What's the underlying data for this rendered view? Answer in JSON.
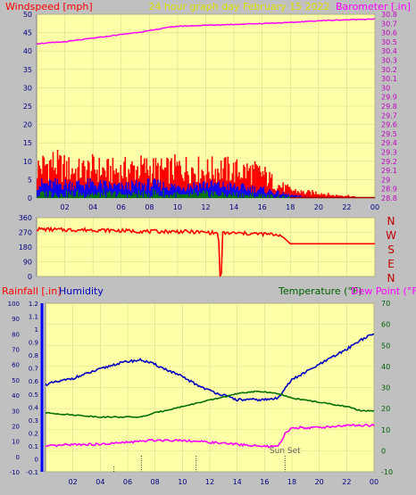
{
  "header": {
    "left_label": "Windspeed [mph]",
    "center_label": "24 hour graph day   February 15 2022",
    "right_label": "Barometer [.in]"
  },
  "footer": {
    "rain_label": "Rainfall [.in]",
    "humidity_label": "Humidity",
    "temp_label": "Temperature (°F)",
    "dew_label": "Dew Point (°F)",
    "sunset_label": "Sun Set"
  },
  "colors": {
    "plot_bg": "#ffffa8",
    "frame_bg": "#c0c0c0",
    "wind_gust": "#ff0000",
    "wind_avg": "#0000ff",
    "wind_low": "#008000",
    "barometer": "#ff00ff",
    "direction": "#ff0000",
    "humidity": "#0000c0",
    "temperature": "#007000",
    "dewpoint": "#ff00ff",
    "tick_text": "#000080",
    "right_tick": "#c000c0",
    "temp_tick": "#006000"
  },
  "chart_data": [
    {
      "type": "line",
      "name": "wind-barometer",
      "x_ticks": [
        "02",
        "04",
        "06",
        "08",
        "10",
        "12",
        "14",
        "16",
        "18",
        "20",
        "22",
        "00"
      ],
      "x_range": [
        0,
        24
      ],
      "y_left": {
        "label": "Windspeed [mph]",
        "range": [
          0,
          50
        ],
        "ticks": [
          "0",
          "5",
          "10",
          "15",
          "20",
          "25",
          "30",
          "35",
          "40",
          "45",
          "50"
        ]
      },
      "y_right": {
        "label": "Barometer [.in]",
        "range": [
          28.8,
          30.8
        ],
        "ticks": [
          "28.8",
          "28.9",
          "29",
          "29.1",
          "29.2",
          "29.3",
          "29.4",
          "29.5",
          "29.6",
          "29.7",
          "29.8",
          "29.9",
          "30",
          "30.1",
          "30.2",
          "30.3",
          "30.4",
          "30.5",
          "30.6",
          "30.7",
          "30.8"
        ]
      },
      "gust_envelope": {
        "x": [
          0,
          1,
          2,
          3,
          4,
          5,
          6,
          7,
          8,
          9,
          10,
          11,
          12,
          13,
          14,
          15,
          16,
          17,
          18,
          19,
          20,
          21,
          22,
          23,
          24
        ],
        "y": [
          11,
          13,
          11,
          10,
          11,
          10,
          10,
          11,
          11,
          10,
          11,
          11,
          10,
          11,
          10,
          10,
          9,
          5,
          3,
          2,
          2,
          1,
          1,
          0,
          0
        ]
      },
      "avg_envelope": {
        "x": [
          0,
          2,
          4,
          6,
          8,
          10,
          12,
          14,
          16,
          17,
          18,
          20,
          24
        ],
        "y": [
          5,
          5,
          5,
          4,
          5,
          4,
          5,
          4,
          3,
          2,
          1,
          0,
          0
        ]
      },
      "barometer": {
        "x": [
          0,
          2,
          4,
          6,
          8,
          9,
          10,
          12,
          14,
          16,
          18,
          20,
          22,
          24
        ],
        "y": [
          30.48,
          30.5,
          30.54,
          30.58,
          30.62,
          30.65,
          30.67,
          30.68,
          30.69,
          30.7,
          30.71,
          30.73,
          30.74,
          30.75
        ]
      }
    },
    {
      "type": "line",
      "name": "wind-direction",
      "y_ticks": [
        "0",
        "90",
        "180",
        "270",
        "360"
      ],
      "y_range": [
        0,
        360
      ],
      "compass": [
        "N",
        "W",
        "S",
        "E",
        "N"
      ],
      "direction": {
        "x": [
          0,
          2,
          4,
          6,
          8,
          10,
          12,
          12.9,
          13.0,
          13.1,
          13.2,
          14,
          16,
          17.2,
          17.5,
          18,
          20,
          24
        ],
        "y": [
          290,
          285,
          285,
          280,
          275,
          275,
          270,
          265,
          0,
          0,
          265,
          265,
          260,
          255,
          240,
          200,
          200,
          200
        ]
      }
    },
    {
      "type": "line",
      "name": "rain-humidity-temperature",
      "x_ticks": [
        "02",
        "04",
        "06",
        "08",
        "10",
        "12",
        "14",
        "16",
        "18",
        "20",
        "22",
        "00"
      ],
      "y_humidity": {
        "label": "Humidity",
        "range": [
          -10,
          100
        ],
        "ticks": [
          "-10",
          "0",
          "10",
          "20",
          "30",
          "40",
          "50",
          "60",
          "70",
          "80",
          "90",
          "100"
        ]
      },
      "y_rain": {
        "label": "Rainfall [.in]",
        "range": [
          -0.1,
          1.2
        ],
        "ticks": [
          "-0.1",
          "0",
          "0.1",
          "0.2",
          "0.3",
          "0.4",
          "0.5",
          "0.6",
          "0.7",
          "0.8",
          "0.9",
          "1",
          "1.1",
          "1.2"
        ]
      },
      "y_temp": {
        "label": "Temperature (°F)",
        "range": [
          -10,
          70
        ],
        "ticks": [
          "-10",
          "0",
          "10",
          "20",
          "30",
          "40",
          "50",
          "60",
          "70"
        ]
      },
      "humidity": {
        "x": [
          0,
          1,
          2,
          3,
          4,
          5,
          6,
          7,
          8,
          9,
          10,
          11,
          12,
          13,
          14,
          15,
          16,
          17,
          17.5,
          18,
          19,
          20,
          21,
          22,
          23,
          24
        ],
        "y": [
          47,
          49,
          51,
          54,
          57,
          60,
          62,
          63,
          60,
          56,
          52,
          47,
          43,
          40,
          37,
          37,
          37,
          38,
          45,
          50,
          55,
          60,
          65,
          70,
          76,
          80
        ]
      },
      "temperature": {
        "x": [
          0,
          2,
          4,
          6,
          7,
          8,
          10,
          12,
          14,
          15,
          16,
          17,
          18,
          20,
          22,
          23,
          24
        ],
        "y": [
          18,
          17,
          16,
          16,
          16,
          18,
          21,
          24,
          27,
          28,
          28,
          27,
          25,
          23,
          21,
          19,
          19
        ]
      },
      "dewpoint": {
        "x": [
          0,
          2,
          4,
          6,
          8,
          10,
          12,
          14,
          16,
          17,
          17.5,
          18,
          20,
          22,
          24
        ],
        "y": [
          2,
          3,
          3,
          4,
          5,
          5,
          4,
          3,
          2,
          2,
          8,
          11,
          11,
          12,
          12
        ]
      },
      "markers": {
        "x": [
          5,
          7,
          11,
          17.5
        ]
      },
      "sunset_x": 17.5
    }
  ]
}
